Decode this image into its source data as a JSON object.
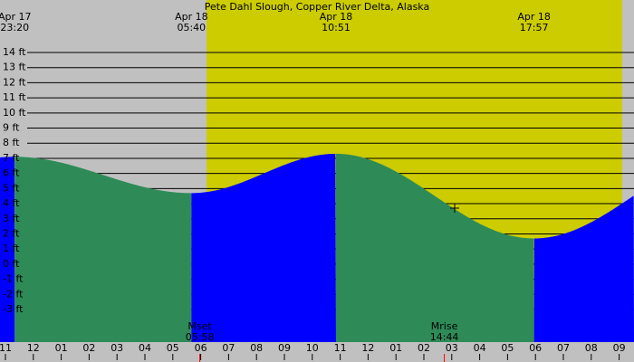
{
  "chart_data": {
    "type": "tide",
    "title": "Pete Dahl Slough, Copper River Delta, Alaska",
    "extremes": [
      {
        "date": "Apr 17",
        "time": "23:20",
        "height": 7.1
      },
      {
        "date": "Apr 18",
        "time": "05:40",
        "height": 4.7
      },
      {
        "date": "Apr 18",
        "time": "10:51",
        "height": 7.3
      },
      {
        "date": "Apr 18",
        "time": "17:57",
        "height": 1.7
      }
    ],
    "rising_color": "#0000ff",
    "falling_color": "#2e8b57",
    "hour_labels": [
      "11",
      "12",
      "01",
      "02",
      "03",
      "04",
      "05",
      "06",
      "07",
      "08",
      "09",
      "10",
      "11",
      "12",
      "01",
      "02",
      "03",
      "04",
      "05",
      "06",
      "07",
      "08",
      "09"
    ],
    "moon_events": [
      {
        "label": "Mset",
        "time": "05:58"
      },
      {
        "label": "Mrise",
        "time": "14:44"
      }
    ],
    "ylim": [
      -3,
      14
    ],
    "yticks": [
      {
        "value": 14,
        "label": "14 ft"
      },
      {
        "value": 13,
        "label": "13 ft"
      },
      {
        "value": 12,
        "label": "12 ft"
      },
      {
        "value": 11,
        "label": "11 ft"
      },
      {
        "value": 10,
        "label": "10 ft"
      },
      {
        "value": 9,
        "label": "9 ft"
      },
      {
        "value": 8,
        "label": "8 ft"
      },
      {
        "value": 7,
        "label": "7 ft"
      },
      {
        "value": 6,
        "label": "6 ft"
      },
      {
        "value": 5,
        "label": "5 ft"
      },
      {
        "value": 4,
        "label": "4 ft"
      },
      {
        "value": 3,
        "label": "3 ft"
      },
      {
        "value": 2,
        "label": "2 ft"
      },
      {
        "value": 1,
        "label": "1 ft"
      },
      {
        "value": 0,
        "label": "0 ft"
      },
      {
        "value": -1,
        "label": "-1 ft"
      },
      {
        "value": -2,
        "label": "-2 ft"
      },
      {
        "value": -3,
        "label": "-3 ft"
      }
    ],
    "grid": true
  }
}
